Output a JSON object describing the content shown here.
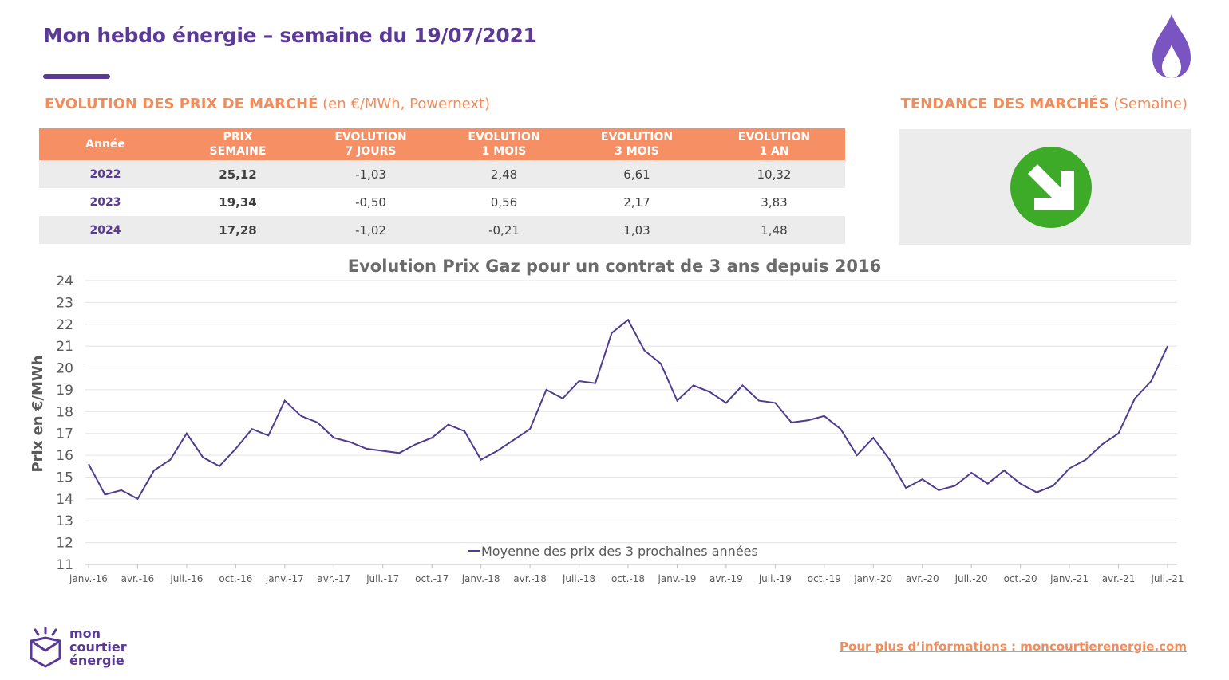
{
  "header": {
    "title": "Mon hebdo énergie – semaine du 19/07/2021",
    "icon": "flame-icon",
    "accent_color": "#5b3a96"
  },
  "prices_section": {
    "title_bold": "EVOLUTION DES PRIX DE MARCHÉ",
    "title_light": "(en €/MWh, Powernext)",
    "columns": [
      {
        "line1": "Année",
        "line2": ""
      },
      {
        "line1": "PRIX",
        "line2": "SEMAINE"
      },
      {
        "line1": "EVOLUTION",
        "line2": "7 JOURS"
      },
      {
        "line1": "EVOLUTION",
        "line2": "1 MOIS"
      },
      {
        "line1": "EVOLUTION",
        "line2": "3 MOIS"
      },
      {
        "line1": "EVOLUTION",
        "line2": "1 AN"
      }
    ],
    "rows": [
      [
        "2022",
        "25,12",
        "-1,03",
        "2,48",
        "6,61",
        "10,32"
      ],
      [
        "2023",
        "19,34",
        "-0,50",
        "0,56",
        "2,17",
        "3,83"
      ],
      [
        "2024",
        "17,28",
        "-1,02",
        "-0,21",
        "1,03",
        "1,48"
      ]
    ],
    "header_color": "#f69064"
  },
  "trend_section": {
    "title_bold": "TENDANCE DES MARCHÉS",
    "title_light": "(Semaine)",
    "icon": "arrow-down-right-icon",
    "icon_color": "#3daa28"
  },
  "chart_data": {
    "type": "line",
    "title": "Evolution Prix Gaz pour un contrat de 3 ans depuis 2016",
    "ylabel": "Prix en €/MWh",
    "xlabel": "",
    "ylim": [
      11,
      24
    ],
    "yticks": [
      11,
      12,
      13,
      14,
      15,
      16,
      17,
      18,
      19,
      20,
      21,
      22,
      23,
      24
    ],
    "xlim": [
      "2016-01",
      "2021-07"
    ],
    "x_tick_labels": [
      "janv.-16",
      "avr.-16",
      "juil.-16",
      "oct.-16",
      "janv.-17",
      "avr.-17",
      "juil.-17",
      "oct.-17",
      "janv.-18",
      "avr.-18",
      "juil.-18",
      "oct.-18",
      "janv.-19",
      "avr.-19",
      "juil.-19",
      "oct.-19",
      "janv.-20",
      "avr.-20",
      "juil.-20",
      "oct.-20",
      "janv.-21",
      "avr.-21",
      "juil.-21"
    ],
    "grid": true,
    "legend_position": "bottom-center",
    "series": [
      {
        "name": "Moyenne des prix des 3 prochaines années",
        "color": "#4f3b8f",
        "x": [
          "2016-01",
          "2016-02",
          "2016-03",
          "2016-04",
          "2016-05",
          "2016-06",
          "2016-07",
          "2016-08",
          "2016-09",
          "2016-10",
          "2016-11",
          "2016-12",
          "2017-01",
          "2017-02",
          "2017-03",
          "2017-04",
          "2017-05",
          "2017-06",
          "2017-07",
          "2017-08",
          "2017-09",
          "2017-10",
          "2017-11",
          "2017-12",
          "2018-01",
          "2018-02",
          "2018-03",
          "2018-04",
          "2018-05",
          "2018-06",
          "2018-07",
          "2018-08",
          "2018-09",
          "2018-10",
          "2018-11",
          "2018-12",
          "2019-01",
          "2019-02",
          "2019-03",
          "2019-04",
          "2019-05",
          "2019-06",
          "2019-07",
          "2019-08",
          "2019-09",
          "2019-10",
          "2019-11",
          "2019-12",
          "2020-01",
          "2020-02",
          "2020-03",
          "2020-04",
          "2020-05",
          "2020-06",
          "2020-07",
          "2020-08",
          "2020-09",
          "2020-10",
          "2020-11",
          "2020-12",
          "2021-01",
          "2021-02",
          "2021-03",
          "2021-04",
          "2021-05",
          "2021-06",
          "2021-07"
        ],
        "values": [
          15.6,
          14.2,
          14.4,
          14.0,
          15.3,
          15.8,
          17.0,
          15.9,
          15.5,
          16.3,
          17.2,
          16.9,
          18.5,
          17.8,
          17.5,
          16.8,
          16.6,
          16.3,
          16.2,
          16.1,
          16.5,
          16.8,
          17.4,
          17.1,
          15.8,
          16.2,
          16.7,
          17.2,
          19.0,
          18.6,
          19.4,
          19.3,
          21.6,
          22.2,
          20.8,
          20.2,
          18.5,
          19.2,
          18.9,
          18.4,
          19.2,
          18.5,
          18.4,
          17.5,
          17.6,
          17.8,
          17.2,
          16.0,
          16.8,
          15.8,
          14.5,
          14.9,
          14.4,
          14.6,
          15.2,
          14.7,
          15.3,
          14.7,
          14.3,
          14.6,
          15.4,
          15.8,
          16.5,
          17.0,
          18.6,
          19.4,
          21.0
        ]
      }
    ]
  },
  "logo": {
    "icon": "mon-courtier-logo-icon",
    "line1": "mon",
    "line2": "courtier",
    "line3": "énergie"
  },
  "footer": {
    "link_text": "Pour plus d’informations : moncourtierenergie.com"
  }
}
